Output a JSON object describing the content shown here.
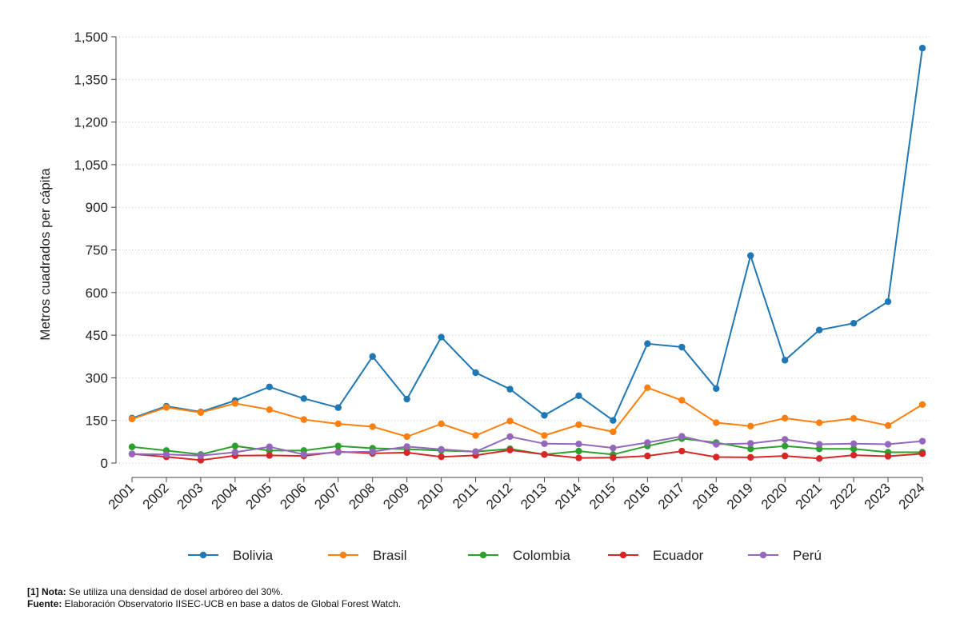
{
  "chart_data": {
    "type": "line",
    "ylabel": "Metros cuadrados per cápita",
    "xlabel": "",
    "ylim": [
      0,
      1500
    ],
    "yticks": [
      0,
      150,
      300,
      450,
      600,
      750,
      900,
      1050,
      1200,
      1350,
      1500
    ],
    "ytick_labels": [
      "0",
      "150",
      "300",
      "450",
      "600",
      "750",
      "900",
      "1,050",
      "1,200",
      "1,350",
      "1,500"
    ],
    "grid": "horizontal dotted",
    "legend": "bottom",
    "categories": [
      "2001",
      "2002",
      "2003",
      "2004",
      "2005",
      "2006",
      "2007",
      "2008",
      "2009",
      "2010",
      "2011",
      "2012",
      "2013",
      "2014",
      "2015",
      "2016",
      "2017",
      "2018",
      "2019",
      "2020",
      "2021",
      "2022",
      "2023",
      "2024"
    ],
    "series": [
      {
        "name": "Bolivia",
        "color": "#1f77b4",
        "values": [
          158,
          200,
          180,
          220,
          268,
          227,
          195,
          375,
          225,
          443,
          318,
          260,
          168,
          237,
          150,
          420,
          408,
          262,
          730,
          362,
          468,
          492,
          568,
          1460
        ]
      },
      {
        "name": "Brasil",
        "color": "#ff7f0e",
        "values": [
          155,
          196,
          178,
          210,
          188,
          153,
          138,
          128,
          93,
          138,
          97,
          148,
          97,
          135,
          110,
          265,
          221,
          142,
          130,
          158,
          142,
          157,
          132,
          206
        ]
      },
      {
        "name": "Colombia",
        "color": "#2ca02c",
        "values": [
          57,
          44,
          30,
          60,
          44,
          44,
          60,
          52,
          49,
          44,
          40,
          50,
          30,
          42,
          30,
          60,
          86,
          72,
          50,
          60,
          50,
          50,
          38,
          38
        ]
      },
      {
        "name": "Ecuador",
        "color": "#d62728",
        "values": [
          32,
          22,
          10,
          26,
          27,
          25,
          40,
          34,
          37,
          22,
          27,
          46,
          30,
          18,
          19,
          25,
          42,
          21,
          20,
          25,
          16,
          28,
          24,
          33
        ]
      },
      {
        "name": "Perú",
        "color": "#9467bd",
        "values": [
          32,
          30,
          26,
          38,
          57,
          30,
          38,
          40,
          58,
          48,
          40,
          93,
          68,
          67,
          53,
          72,
          94,
          66,
          69,
          83,
          66,
          68,
          66,
          77
        ]
      }
    ]
  },
  "notes": {
    "nota_label": "[1] Nota:",
    "nota_text": " Se utiliza una densidad de dosel arbóreo del 30%.",
    "fuente_label": "Fuente:",
    "fuente_text": " Elaboración Observatorio IISEC-UCB en base a datos de Global Forest Watch."
  }
}
